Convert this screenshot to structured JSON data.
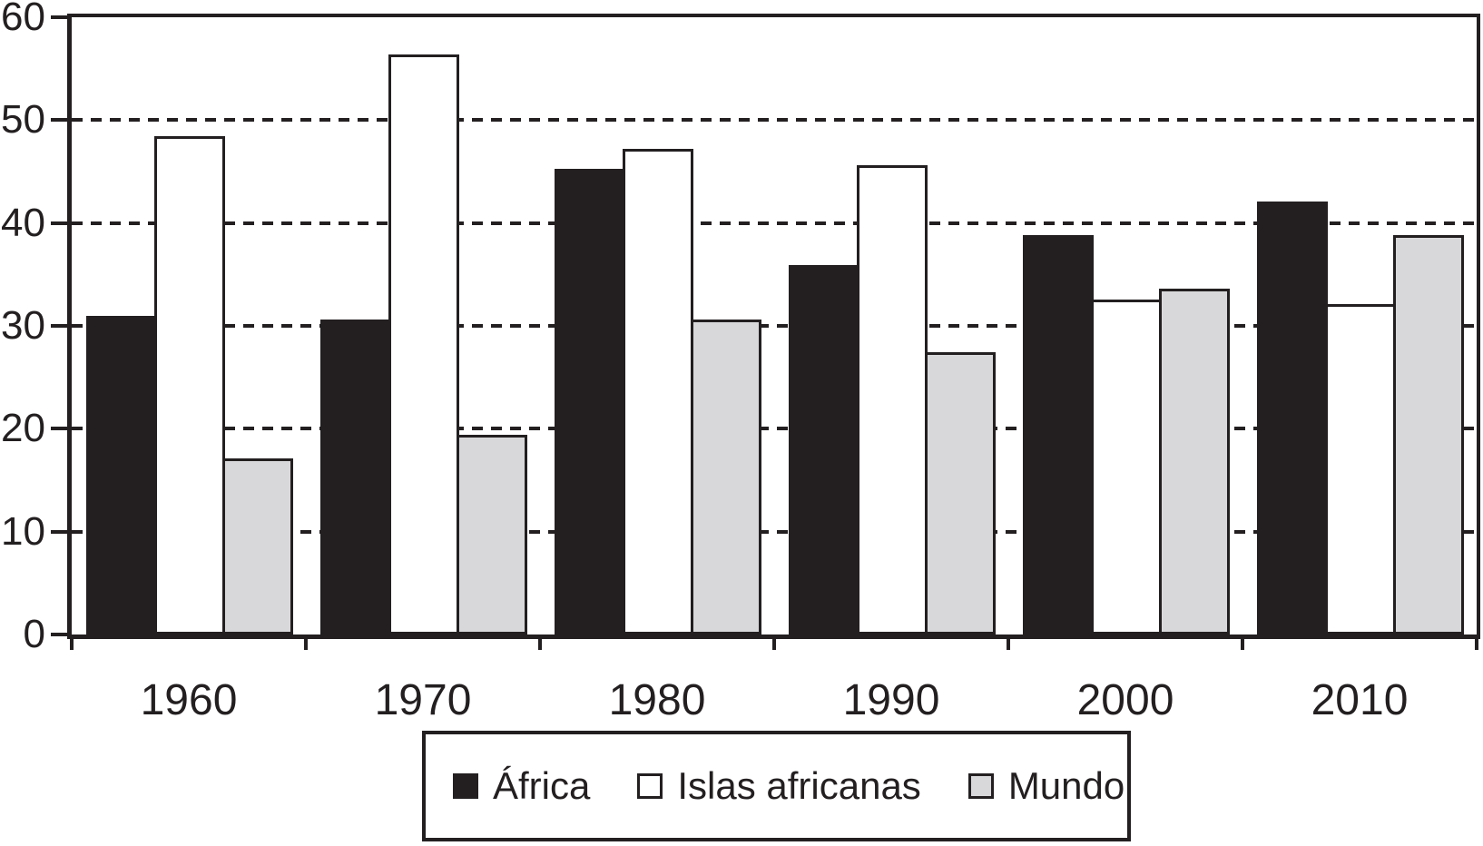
{
  "chart_data": {
    "type": "bar",
    "title": "",
    "xlabel": "",
    "ylabel": "",
    "categories": [
      "1960",
      "1970",
      "1980",
      "1990",
      "2000",
      "2010"
    ],
    "series": [
      {
        "name": "África",
        "color": "#231f20",
        "values": [
          31.0,
          30.6,
          45.3,
          35.9,
          38.8,
          42.1
        ]
      },
      {
        "name": "Islas africanas",
        "color": "#ffffff",
        "values": [
          48.4,
          56.4,
          47.2,
          45.6,
          32.6,
          32.1
        ]
      },
      {
        "name": "Mundo",
        "color": "#d8d8da",
        "values": [
          17.1,
          19.4,
          30.6,
          27.4,
          33.6,
          38.8
        ]
      }
    ],
    "ylim": [
      0,
      60
    ],
    "yticks": [
      0,
      10,
      20,
      30,
      40,
      50,
      60
    ],
    "ytick_labels": [
      "0",
      "10",
      "20",
      "30",
      "40",
      "50",
      "60"
    ],
    "gridlines": [
      10,
      20,
      30,
      40,
      50
    ],
    "grid_style": "dashed-horizontal",
    "legend_position": "bottom",
    "bar_border_color": "#231f20",
    "axis_color": "#231f20",
    "background_color": "#ffffff"
  }
}
